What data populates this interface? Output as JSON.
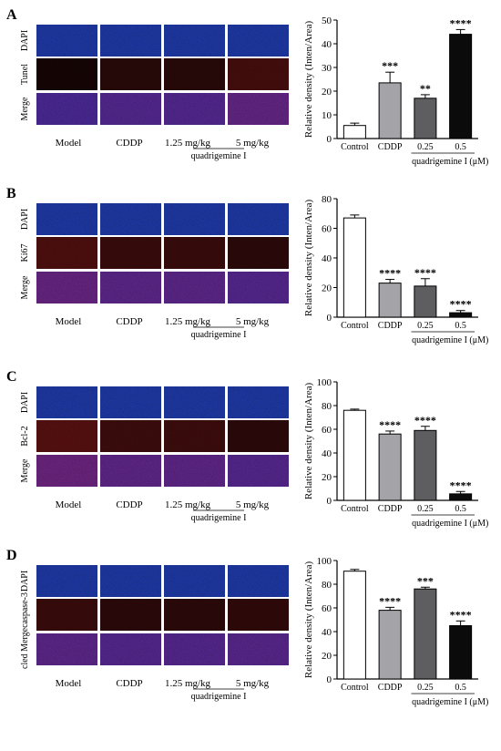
{
  "palette": {
    "dapi": "#1f3aa8",
    "red": "#6a1414",
    "merge": "#4a2a9a",
    "bar_colors": [
      "#ffffff",
      "#a4a4a8",
      "#5e5e60",
      "#0b0b0b"
    ]
  },
  "panels": [
    {
      "letter": "A",
      "rows": [
        "DAPI",
        "Tunel",
        "Merge"
      ],
      "groups": [
        "Model",
        "CDDP",
        "1.25 mg/kg",
        "5 mg/kg"
      ],
      "group_caption": "quadrigemine I",
      "micro_red": [
        0.05,
        0.25,
        0.25,
        0.6
      ],
      "chart_data": {
        "type": "bar",
        "categories": [
          "Control",
          "CDDP",
          "0.25",
          "0.5"
        ],
        "values": [
          5.5,
          23.5,
          17,
          44
        ],
        "errors": [
          1,
          4.5,
          1.5,
          2
        ],
        "significance": [
          "",
          "***",
          "**",
          "****"
        ],
        "ylabel": "Relative density (Inten/Area)",
        "xlabel": "quadrigemine I (μM)",
        "ylim": [
          0,
          50
        ],
        "yticks": [
          0,
          10,
          20,
          30,
          40,
          50
        ]
      }
    },
    {
      "letter": "B",
      "rows": [
        "DAPI",
        "Ki67",
        "Merge"
      ],
      "groups": [
        "Model",
        "CDDP",
        "1.25 mg/kg",
        "5 mg/kg"
      ],
      "group_caption": "quadrigemine I",
      "micro_red": [
        0.7,
        0.45,
        0.45,
        0.3
      ],
      "chart_data": {
        "type": "bar",
        "categories": [
          "Control",
          "CDDP",
          "0.25",
          "0.5"
        ],
        "values": [
          67,
          23,
          21,
          3
        ],
        "errors": [
          2,
          2.5,
          5,
          1.5
        ],
        "significance": [
          "",
          "****",
          "****",
          "****"
        ],
        "ylabel": "Relative density (Inten/Area)",
        "xlabel": "quadrigemine I (μM)",
        "ylim": [
          0,
          80
        ],
        "yticks": [
          0,
          20,
          40,
          60,
          80
        ]
      }
    },
    {
      "letter": "C",
      "rows": [
        "DAPI",
        "Bcl-2",
        "Merge"
      ],
      "groups": [
        "Model",
        "CDDP",
        "1.25 mg/kg",
        "5 mg/kg"
      ],
      "group_caption": "quadrigemine I",
      "micro_red": [
        0.8,
        0.5,
        0.5,
        0.3
      ],
      "chart_data": {
        "type": "bar",
        "categories": [
          "Control",
          "CDDP",
          "0.25",
          "0.5"
        ],
        "values": [
          76,
          56,
          59,
          5.5
        ],
        "errors": [
          1,
          2.5,
          3.5,
          2
        ],
        "significance": [
          "",
          "****",
          "****",
          "****"
        ],
        "ylabel": "Relative density (Inten/Area)",
        "xlabel": "quadrigemine I (μM)",
        "ylim": [
          0,
          100
        ],
        "yticks": [
          0,
          20,
          40,
          60,
          80,
          100
        ]
      }
    },
    {
      "letter": "D",
      "rows": [
        "DAPI",
        "cled Mergecaspase-3",
        ""
      ],
      "groups": [
        "Model",
        "CDDP",
        "1.25 mg/kg",
        "5 mg/kg"
      ],
      "group_caption": "quadrigemine I",
      "micro_red": [
        0.45,
        0.3,
        0.3,
        0.35
      ],
      "chart_data": {
        "type": "bar",
        "categories": [
          "Control",
          "CDDP",
          "0.25",
          "0.5"
        ],
        "values": [
          91,
          58,
          76,
          45
        ],
        "errors": [
          1.5,
          2.5,
          1.5,
          4
        ],
        "significance": [
          "",
          "****",
          "***",
          "****"
        ],
        "ylabel": "Relative density (Inten/Area)",
        "xlabel": "quadrigemine I (μM)",
        "ylim": [
          0,
          100
        ],
        "yticks": [
          0,
          20,
          40,
          60,
          80,
          100
        ]
      }
    }
  ]
}
